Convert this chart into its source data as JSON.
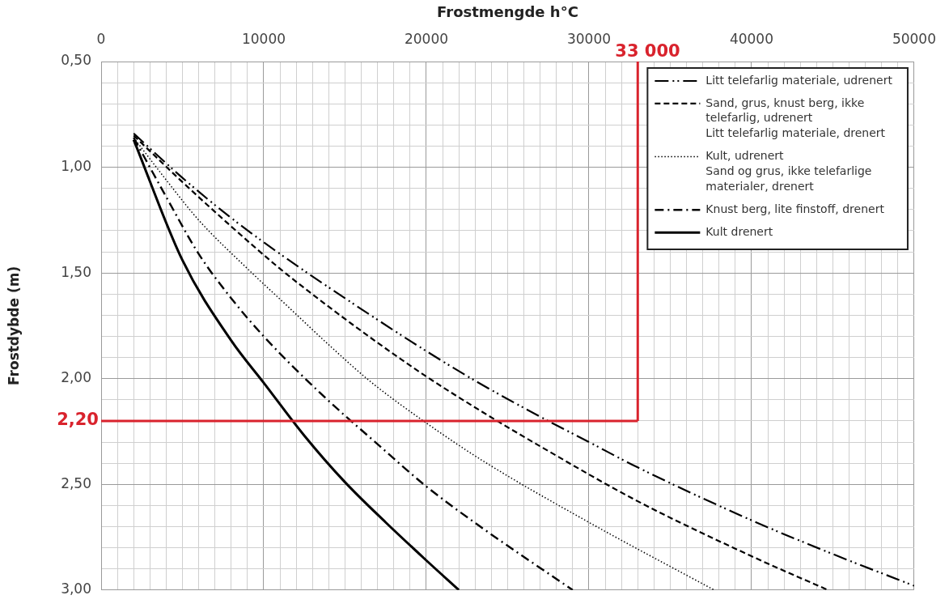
{
  "chart_data": {
    "type": "line",
    "xlabel": "Frostmengde h°C",
    "ylabel": "Frostdybde (m)",
    "xlim": [
      0,
      50000
    ],
    "xticks": [
      0,
      {
        "value": 1000,
        "label": null
      },
      {
        "value": 2000,
        "label": null
      },
      {
        "value": 3000,
        "label": null
      },
      {
        "value": 4000,
        "label": null
      },
      {
        "value": 5000,
        "label": null
      },
      {
        "value": 6000,
        "label": null
      },
      {
        "value": 7000,
        "label": null
      },
      {
        "value": 8000,
        "label": null
      },
      {
        "value": 9000,
        "label": null
      },
      10000,
      {
        "value": 11000,
        "label": null
      },
      {
        "value": 12000,
        "label": null
      },
      {
        "value": 13000,
        "label": null
      },
      {
        "value": 14000,
        "label": null
      },
      {
        "value": 15000,
        "label": null
      },
      {
        "value": 16000,
        "label": null
      },
      {
        "value": 17000,
        "label": null
      },
      {
        "value": 18000,
        "label": null
      },
      {
        "value": 19000,
        "label": null
      },
      20000,
      {
        "value": 21000,
        "label": null
      },
      {
        "value": 22000,
        "label": null
      },
      {
        "value": 23000,
        "label": null
      },
      {
        "value": 24000,
        "label": null
      },
      {
        "value": 25000,
        "label": null
      },
      {
        "value": 26000,
        "label": null
      },
      {
        "value": 27000,
        "label": null
      },
      {
        "value": 28000,
        "label": null
      },
      {
        "value": 29000,
        "label": null
      },
      30000,
      {
        "value": 31000,
        "label": null
      },
      {
        "value": 32000,
        "label": null
      },
      {
        "value": 33000,
        "label": null
      },
      {
        "value": 34000,
        "label": null
      },
      {
        "value": 35000,
        "label": null
      },
      {
        "value": 36000,
        "label": null
      },
      {
        "value": 37000,
        "label": null
      },
      {
        "value": 38000,
        "label": null
      },
      {
        "value": 39000,
        "label": null
      },
      40000,
      {
        "value": 41000,
        "label": null
      },
      {
        "value": 42000,
        "label": null
      },
      {
        "value": 43000,
        "label": null
      },
      {
        "value": 44000,
        "label": null
      },
      {
        "value": 45000,
        "label": null
      },
      {
        "value": 46000,
        "label": null
      },
      {
        "value": 47000,
        "label": null
      },
      {
        "value": 48000,
        "label": null
      },
      {
        "value": 49000,
        "label": null
      },
      50000
    ],
    "ylim": [
      3.0,
      0.5
    ],
    "yticks": [
      {
        "value": 0.5,
        "label": "0,50"
      },
      {
        "value": 0.6,
        "label": null
      },
      {
        "value": 0.7,
        "label": null
      },
      {
        "value": 0.8,
        "label": null
      },
      {
        "value": 0.9,
        "label": null
      },
      {
        "value": 1.0,
        "label": "1,00"
      },
      {
        "value": 1.1,
        "label": null
      },
      {
        "value": 1.2,
        "label": null
      },
      {
        "value": 1.3,
        "label": null
      },
      {
        "value": 1.4,
        "label": null
      },
      {
        "value": 1.5,
        "label": "1,50"
      },
      {
        "value": 1.6,
        "label": null
      },
      {
        "value": 1.7,
        "label": null
      },
      {
        "value": 1.8,
        "label": null
      },
      {
        "value": 1.9,
        "label": null
      },
      {
        "value": 2.0,
        "label": "2,00"
      },
      {
        "value": 2.1,
        "label": null
      },
      {
        "value": 2.2,
        "label": null
      },
      {
        "value": 2.3,
        "label": null
      },
      {
        "value": 2.4,
        "label": null
      },
      {
        "value": 2.5,
        "label": "2,50"
      },
      {
        "value": 2.6,
        "label": null
      },
      {
        "value": 2.7,
        "label": null
      },
      {
        "value": 2.8,
        "label": null
      },
      {
        "value": 2.9,
        "label": null
      },
      {
        "value": 3.0,
        "label": "3,00"
      }
    ],
    "grid": true,
    "legend": "top right",
    "series": [
      {
        "name": "Litt telefarlig materiale, udrenert",
        "color": "#000000",
        "line_style": "dashdotdot",
        "x": [
          2000,
          5000,
          8000,
          11000,
          15000,
          20000,
          23000,
          27000,
          30000,
          33000,
          40000,
          45000,
          50000
        ],
        "values": [
          0.84,
          1.05,
          1.24,
          1.41,
          1.62,
          1.87,
          2.01,
          2.18,
          2.3,
          2.42,
          2.67,
          2.83,
          2.98
        ]
      },
      {
        "name": "Sand, grus, knust berg, ikke telefarlig, udrenert\nLitt telefarlig materiale, drenert",
        "color": "#000000",
        "line_style": "dashed",
        "x": [
          2000,
          5000,
          8000,
          11000,
          14000,
          17000,
          20000,
          23500,
          27000,
          33000,
          40000,
          44700
        ],
        "values": [
          0.85,
          1.07,
          1.28,
          1.48,
          1.66,
          1.83,
          1.99,
          2.16,
          2.32,
          2.58,
          2.84,
          3.0
        ]
      },
      {
        "name": "Kult, udrenert\nSand og grus, ikke telefarlige materialer, drenert",
        "color": "#000000",
        "line_style": "dotted",
        "x": [
          2000,
          4000,
          6000,
          9000,
          11500,
          14000,
          16500,
          20000,
          23500,
          30000,
          37700
        ],
        "values": [
          0.86,
          1.06,
          1.25,
          1.48,
          1.66,
          1.84,
          2.01,
          2.21,
          2.39,
          2.68,
          3.0
        ]
      },
      {
        "name": "Knust berg, lite finstoff, drenert",
        "color": "#000000",
        "line_style": "dashdot",
        "x": [
          2000,
          4000,
          6000,
          8000,
          10000,
          13500,
          17000,
          20000,
          23500,
          29000
        ],
        "values": [
          0.86,
          1.14,
          1.41,
          1.62,
          1.8,
          2.07,
          2.31,
          2.51,
          2.71,
          3.0
        ]
      },
      {
        "name": "Kult drenert",
        "color": "#000000",
        "line_style": "solid",
        "x": [
          2000,
          5000,
          8000,
          10000,
          12500,
          15000,
          17500,
          20000,
          22000
        ],
        "values": [
          0.87,
          1.44,
          1.82,
          2.02,
          2.27,
          2.49,
          2.68,
          2.86,
          3.0
        ]
      }
    ],
    "ref_lines": [
      {
        "axis": "x",
        "value": 33000,
        "label": "33 000",
        "color": "#d9232d"
      },
      {
        "axis": "y",
        "value": 2.2,
        "label": "2,20",
        "color": "#d9232d"
      }
    ]
  }
}
